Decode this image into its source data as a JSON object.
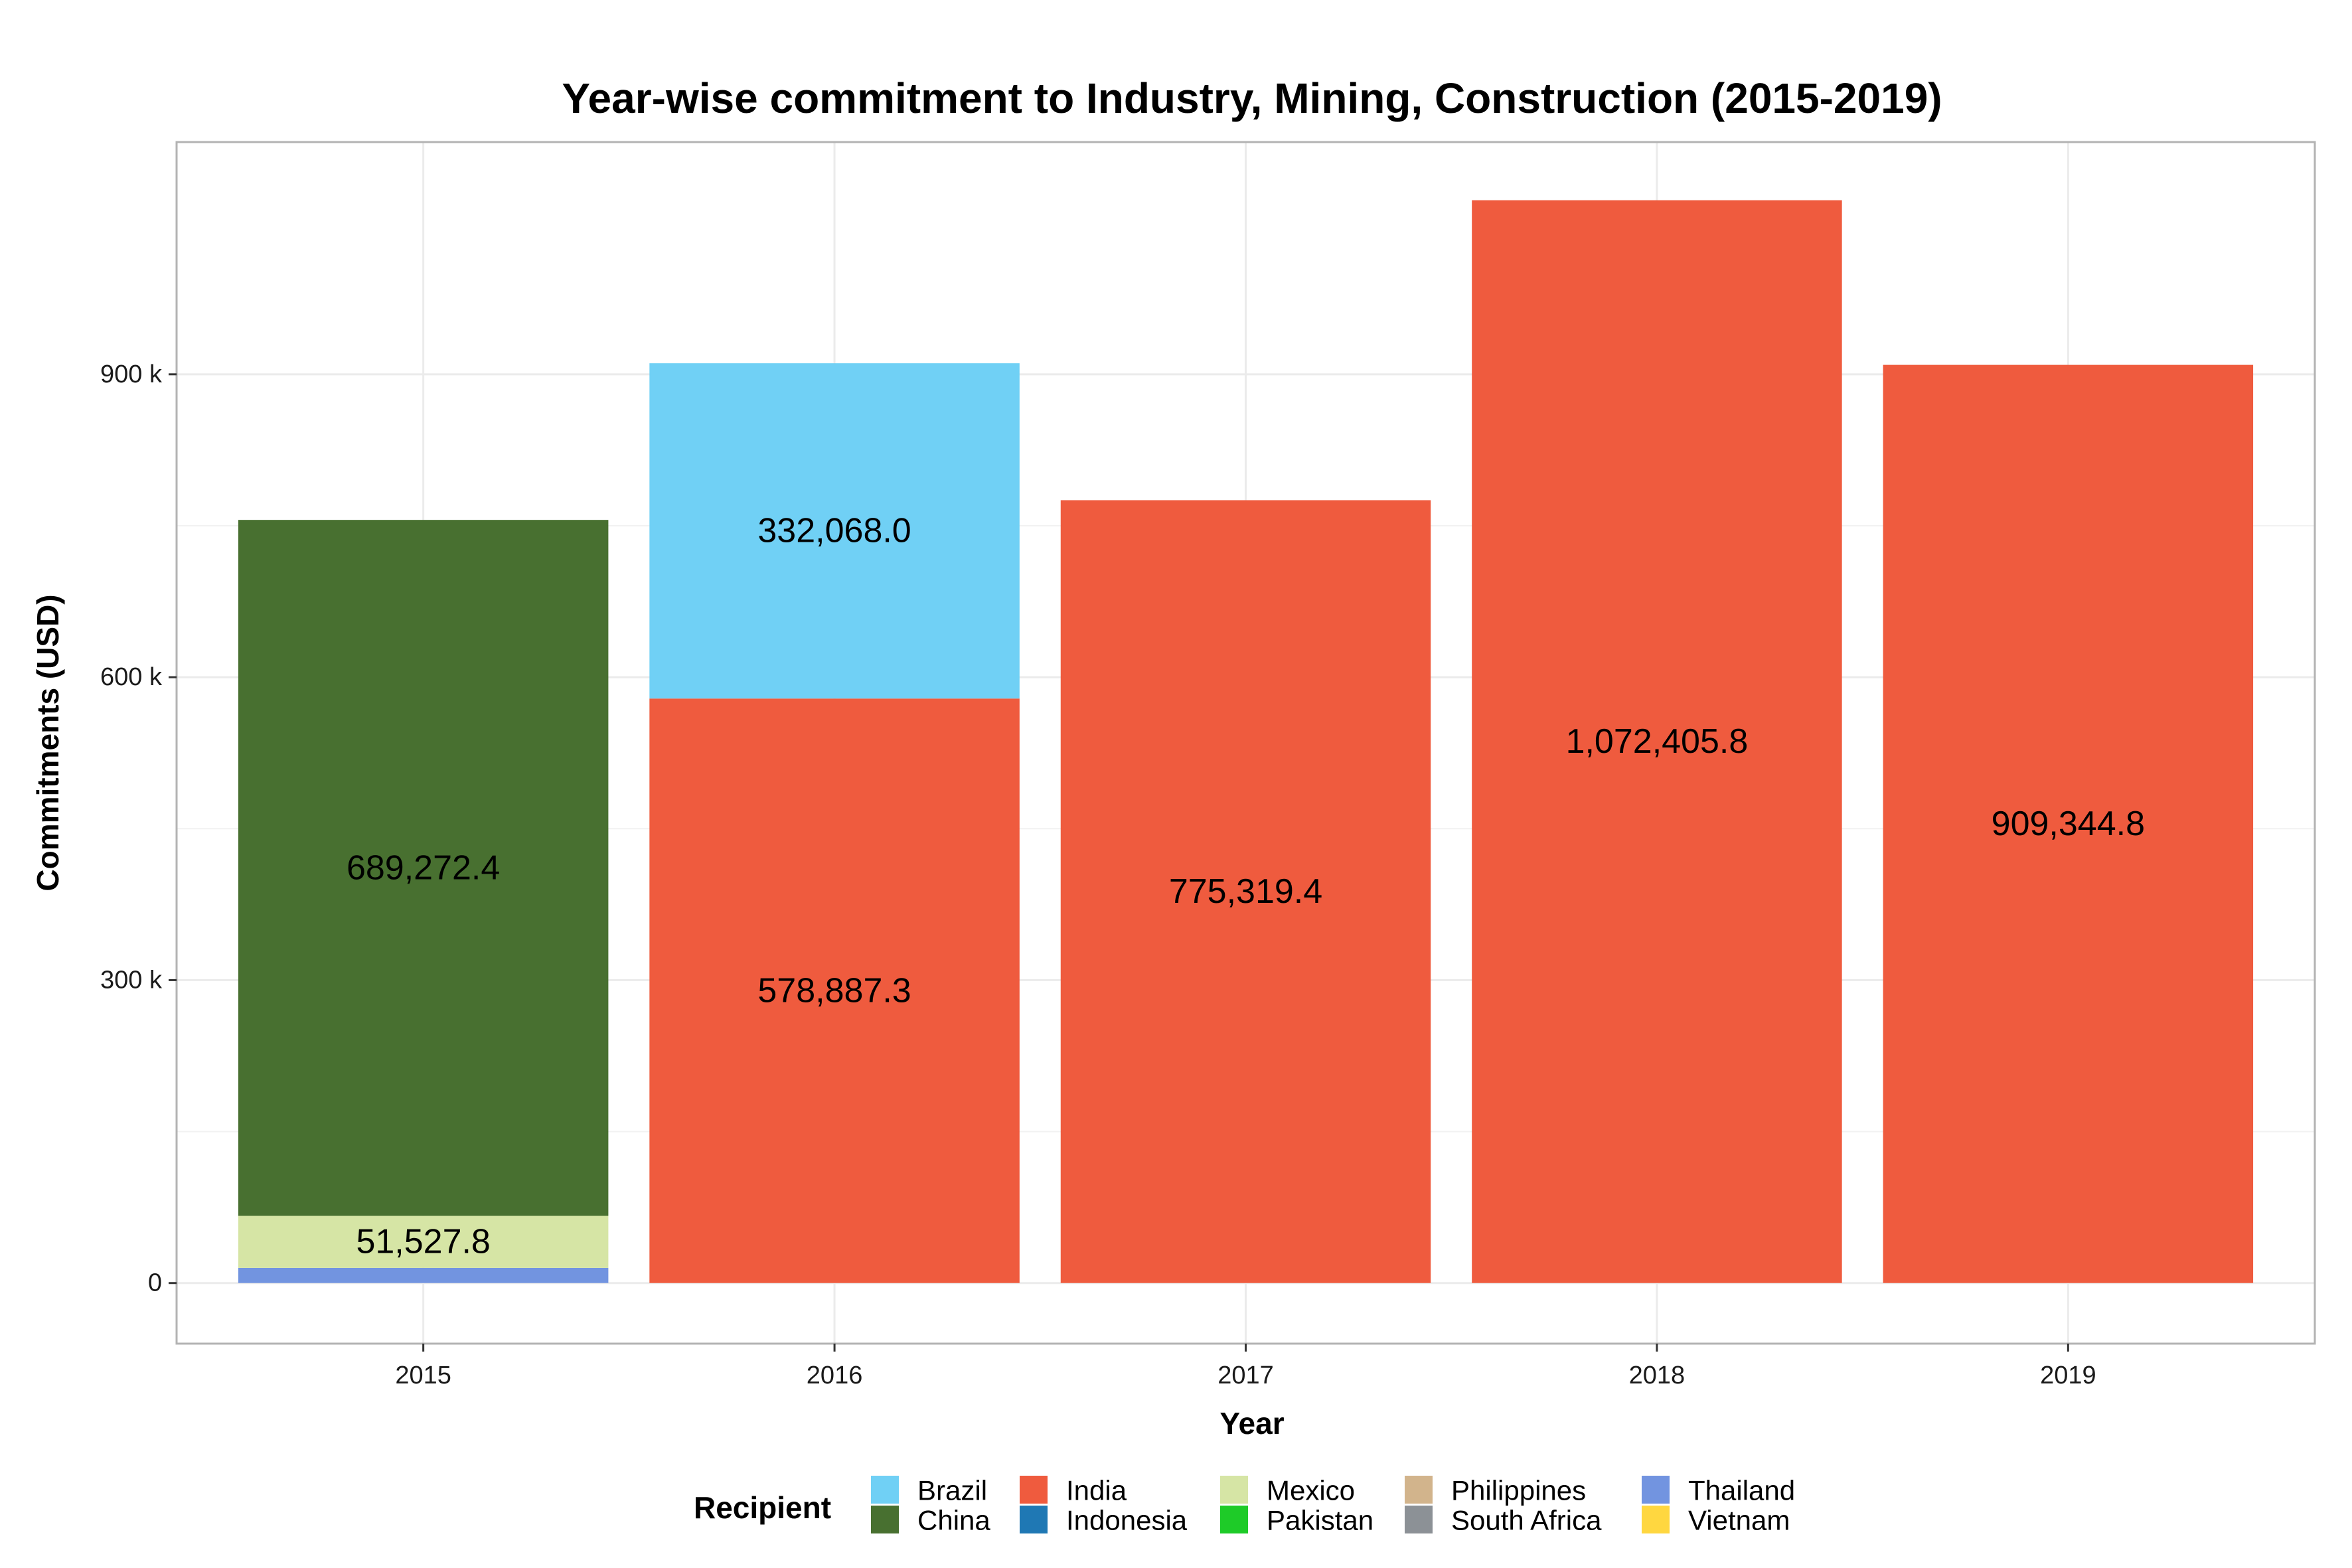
{
  "chart_data": {
    "type": "bar",
    "stacked": true,
    "title": "Year-wise commitment to Industry, Mining, Construction (2015-2019)",
    "xlabel": "Year",
    "ylabel": "Commitments (USD)",
    "categories": [
      "2015",
      "2016",
      "2017",
      "2018",
      "2019"
    ],
    "ylim": [
      -60000,
      1130000
    ],
    "yticks": [
      0,
      300000,
      600000,
      900000
    ],
    "ytick_labels": [
      "0",
      "300 k",
      "600 k",
      "900 k"
    ],
    "grid": true,
    "legend": {
      "title": "Recipient",
      "position": "bottom"
    },
    "series": [
      {
        "name": "Thailand",
        "color": "#7294E0",
        "values": [
          15000,
          0,
          0,
          0,
          0
        ],
        "labels": [
          "",
          "",
          "",
          "",
          ""
        ]
      },
      {
        "name": "Mexico",
        "color": "#D6E5A5",
        "values": [
          51527.8,
          0,
          0,
          0,
          0
        ],
        "labels": [
          "51,527.8",
          "",
          "",
          "",
          ""
        ]
      },
      {
        "name": "India",
        "color": "#EF5B3E",
        "values": [
          0,
          578887.3,
          775319.4,
          1072405.8,
          909344.8
        ],
        "labels": [
          "",
          "578,887.3",
          "775,319.4",
          "1,072,405.8",
          "909,344.8"
        ]
      },
      {
        "name": "China",
        "color": "#487030",
        "values": [
          689272.4,
          0,
          0,
          0,
          0
        ],
        "labels": [
          "689,272.4",
          "",
          "",
          "",
          ""
        ]
      },
      {
        "name": "Brazil",
        "color": "#70D0F5",
        "values": [
          0,
          332068.0,
          0,
          0,
          0
        ],
        "labels": [
          "",
          "332,068.0",
          "",
          "",
          ""
        ]
      }
    ],
    "legend_entries": [
      {
        "name": "Brazil",
        "color": "#70D0F5"
      },
      {
        "name": "China",
        "color": "#487030"
      },
      {
        "name": "India",
        "color": "#EF5B3E"
      },
      {
        "name": "Indonesia",
        "color": "#1F78B4"
      },
      {
        "name": "Mexico",
        "color": "#D6E5A5"
      },
      {
        "name": "Pakistan",
        "color": "#1ECB28"
      },
      {
        "name": "Philippines",
        "color": "#D2B48C"
      },
      {
        "name": "South Africa",
        "color": "#8C9196"
      },
      {
        "name": "Thailand",
        "color": "#7294E0"
      },
      {
        "name": "Vietnam",
        "color": "#FFD740"
      }
    ]
  }
}
